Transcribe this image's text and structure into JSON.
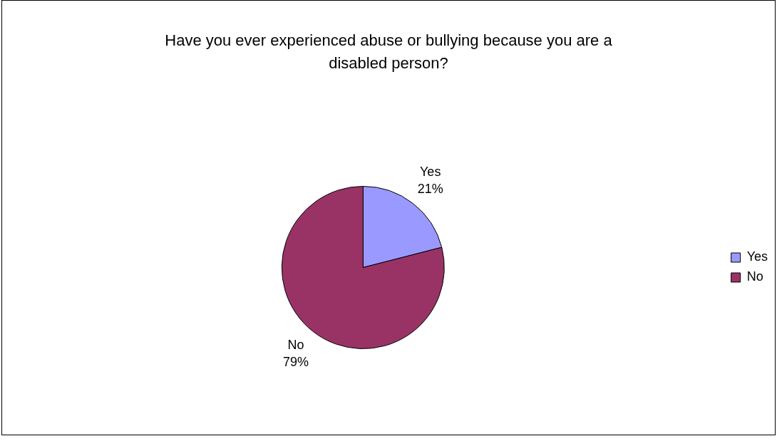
{
  "chart_data": {
    "type": "pie",
    "title": "Have you ever experienced abuse or bullying because you are a disabled person?",
    "categories": [
      "Yes",
      "No"
    ],
    "values": [
      21,
      79
    ],
    "colors": [
      "#9999ff",
      "#993366"
    ],
    "value_labels": [
      "21%",
      "79%"
    ],
    "legend": "right"
  }
}
